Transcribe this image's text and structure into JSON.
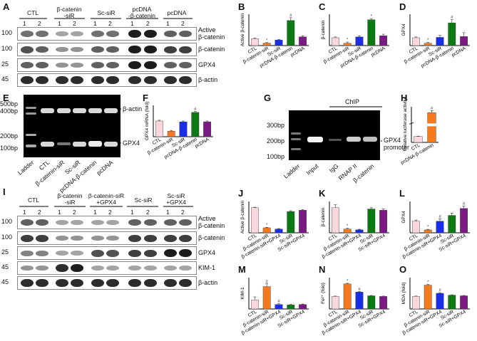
{
  "panel_letters": [
    "A",
    "B",
    "C",
    "D",
    "E",
    "F",
    "G",
    "H",
    "I",
    "J",
    "K",
    "L",
    "M",
    "N",
    "O"
  ],
  "panelA": {
    "groups": [
      "CTL",
      "β-catenin\n-siR",
      "Sc-siR",
      "pcDNA\n-β-catenin",
      "pcDNA"
    ],
    "lanes": [
      "1",
      "2",
      "1",
      "2",
      "1",
      "2",
      "1",
      "2",
      "1",
      "2"
    ],
    "rows": [
      {
        "mw": "100",
        "label": "Active\nβ-catenin"
      },
      {
        "mw": "100",
        "label": "β-catenin"
      },
      {
        "mw": "25",
        "label": "GPX4"
      },
      {
        "mw": "45",
        "label": "β-actin"
      }
    ]
  },
  "panelE": {
    "ladder_marks": [
      "500bp",
      "400bp",
      "200bp",
      "100bp"
    ],
    "band_labels": [
      "β-actin",
      "GPX4"
    ],
    "lanes": [
      "Ladder",
      "CTL",
      "β-catenin-siR",
      "Sc-siR",
      "pcDNA-β-catenin",
      "pcDNA"
    ]
  },
  "panelG": {
    "ladder_marks": [
      "300bp",
      "200bp",
      "100bp"
    ],
    "chip_label": "ChIP",
    "band_label": "GPX4\npromoter",
    "lanes": [
      "Ladder",
      "Input",
      "IgG",
      "RNAP II",
      "β-catenin"
    ]
  },
  "panelI": {
    "groups": [
      "CTL",
      "β-catenin\n-siR",
      "β-catenin-siR\n+GPX4",
      "Sc-siR",
      "Sc-siR\n+GPX4"
    ],
    "lanes": [
      "1",
      "2",
      "1",
      "2",
      "1",
      "2",
      "1",
      "2",
      "1",
      "2"
    ],
    "rows": [
      {
        "mw": "100",
        "label": "Active\nβ-catenin"
      },
      {
        "mw": "100",
        "label": "β-catenin"
      },
      {
        "mw": "25",
        "label": "GPX4"
      },
      {
        "mw": "45",
        "label": "KIM-1"
      },
      {
        "mw": "45",
        "label": "β-actin"
      }
    ]
  },
  "chart_data": [
    {
      "id": "B",
      "type": "bar",
      "ylabel": "Active β-catenin",
      "categories": [
        "CTL",
        "β-catenin-siR",
        "Sc-siR",
        "pcDNA-β-catenin",
        "pcDNA"
      ],
      "values": [
        1.0,
        0.35,
        0.8,
        3.6,
        1.25
      ],
      "errors": [
        0.1,
        0.08,
        0.08,
        0.4,
        0.15
      ],
      "marks": [
        "",
        "*",
        "",
        "#",
        ""
      ],
      "colors": [
        "#f9d7dc",
        "#f47a20",
        "#1a2ee6",
        "#0b7a12",
        "#7b1a84"
      ],
      "ylim": [
        0,
        4.5
      ]
    },
    {
      "id": "C",
      "type": "bar",
      "ylabel": "β-catenin",
      "categories": [
        "CTL",
        "β-catenin-siR",
        "Sc-siR",
        "pcDNA-β-catenin",
        "pcDNA"
      ],
      "values": [
        1.0,
        0.3,
        1.1,
        3.3,
        1.25
      ],
      "errors": [
        0.1,
        0.15,
        0.15,
        0.15,
        0.2
      ],
      "marks": [
        "",
        "*",
        "",
        "*",
        ""
      ],
      "colors": [
        "#f9d7dc",
        "#f47a20",
        "#1a2ee6",
        "#0b7a12",
        "#7b1a84"
      ],
      "ylim": [
        0,
        4.0
      ]
    },
    {
      "id": "D",
      "type": "bar",
      "ylabel": "GPX4",
      "categories": [
        "CTL",
        "β-catenin-siR",
        "Sc-siR",
        "pcDNA-β-catenin",
        "pcDNA"
      ],
      "values": [
        1.0,
        0.3,
        1.05,
        2.9,
        1.15
      ],
      "errors": [
        0.1,
        0.1,
        0.25,
        0.4,
        0.5
      ],
      "marks": [
        "",
        "*",
        "",
        "#",
        ""
      ],
      "colors": [
        "#f9d7dc",
        "#f47a20",
        "#1a2ee6",
        "#0b7a12",
        "#7b1a84"
      ],
      "ylim": [
        0,
        4.0
      ]
    },
    {
      "id": "F",
      "type": "bar",
      "ylabel": "GPX4 mRNA (fold)",
      "categories": [
        "CTL",
        "β-catenin-siR",
        "Sc-siR",
        "pcDNA-β-catenin",
        "pcDNA"
      ],
      "values": [
        1.0,
        0.35,
        0.95,
        1.55,
        0.95
      ],
      "errors": [
        0.05,
        0.05,
        0.05,
        0.06,
        0.05
      ],
      "marks": [
        "",
        "",
        "",
        "#",
        ""
      ],
      "colors": [
        "#f9d7dc",
        "#f47a20",
        "#1a2ee6",
        "#0b7a12",
        "#7b1a84"
      ],
      "ylim": [
        0,
        2.0
      ]
    },
    {
      "id": "H",
      "type": "bar",
      "ylabel": "Relative luciferase activity",
      "categories": [
        "CTL",
        "pcDNA-β-catenin"
      ],
      "values": [
        1.0,
        5.0
      ],
      "errors": [
        0.05,
        0.35
      ],
      "marks": [
        "",
        "#"
      ],
      "colors": [
        "#f9d7dc",
        "#f47a20"
      ],
      "ylim": [
        0,
        6.0
      ],
      "axis_break": true
    },
    {
      "id": "J",
      "type": "bar",
      "ylabel": "Active β-catenin",
      "categories": [
        "CTL",
        "β-catenin-siR",
        "β-catenin-siR+GPX4",
        "Sc-siR",
        "Sc-siR+GPX4"
      ],
      "values": [
        1.0,
        0.2,
        0.15,
        0.85,
        0.9
      ],
      "errors": [
        0.02,
        0.02,
        0.02,
        0.03,
        0.02
      ],
      "marks": [
        "",
        "*",
        "",
        "",
        ""
      ],
      "colors": [
        "#f9d7dc",
        "#f47a20",
        "#1a2ee6",
        "#0b7a12",
        "#7b1a84"
      ],
      "ylim": [
        0,
        1.25
      ]
    },
    {
      "id": "K",
      "type": "bar",
      "ylabel": "β-catenin",
      "categories": [
        "CTL",
        "β-catenin-siR",
        "β-catenin-siR+GPX4",
        "Sc-siR",
        "Sc-siR+GPX4"
      ],
      "values": [
        1.0,
        0.15,
        0.12,
        0.95,
        0.9
      ],
      "errors": [
        0.12,
        0.03,
        0.02,
        0.05,
        0.05
      ],
      "marks": [
        "",
        "*",
        "",
        "",
        ""
      ],
      "colors": [
        "#f9d7dc",
        "#f47a20",
        "#1a2ee6",
        "#0b7a12",
        "#7b1a84"
      ],
      "ylim": [
        0,
        1.25
      ]
    },
    {
      "id": "L",
      "type": "bar",
      "ylabel": "GPX4",
      "categories": [
        "CTL",
        "β-catenin-siR",
        "β-catenin-siR+GPX4",
        "Sc-siR",
        "Sc-siR+GPX4"
      ],
      "values": [
        1.0,
        0.25,
        1.0,
        1.5,
        2.1
      ],
      "errors": [
        0.1,
        0.05,
        0.2,
        0.2,
        0.2
      ],
      "marks": [
        "",
        "*",
        "#",
        "",
        "#"
      ],
      "colors": [
        "#f9d7dc",
        "#f47a20",
        "#1a2ee6",
        "#0b7a12",
        "#7b1a84"
      ],
      "ylim": [
        0,
        2.7
      ]
    },
    {
      "id": "M",
      "type": "bar",
      "ylabel": "KIM-1",
      "categories": [
        "CTL",
        "β-catenin-siR",
        "β-catenin-siR+GPX4",
        "Sc-siR",
        "Sc-siR+GPX4"
      ],
      "values": [
        1.0,
        2.5,
        0.5,
        0.45,
        0.5
      ],
      "errors": [
        0.35,
        0.3,
        0.08,
        0.05,
        0.05
      ],
      "marks": [
        "",
        "#",
        "#",
        "",
        ""
      ],
      "colors": [
        "#f9d7dc",
        "#f47a20",
        "#1a2ee6",
        "#0b7a12",
        "#7b1a84"
      ],
      "ylim": [
        0,
        3.5
      ]
    },
    {
      "id": "N",
      "type": "bar",
      "ylabel": "Fe²⁺ (fold)",
      "categories": [
        "CTL",
        "β-catenin-siR",
        "β-catenin-siR+GPX4",
        "Sc-siR",
        "Sc-siR+GPX4"
      ],
      "values": [
        1.0,
        2.0,
        1.35,
        1.05,
        1.0
      ],
      "errors": [
        0.03,
        0.05,
        0.04,
        0.03,
        0.03
      ],
      "marks": [
        "",
        "*",
        "#",
        "",
        ""
      ],
      "colors": [
        "#f9d7dc",
        "#f47a20",
        "#1a2ee6",
        "#0b7a12",
        "#7b1a84"
      ],
      "ylim": [
        0,
        2.5
      ]
    },
    {
      "id": "O",
      "type": "bar",
      "ylabel": "MDA (fold)",
      "categories": [
        "CTL",
        "β-catenin-siR",
        "β-catenin-siR+GPX4",
        "Sc-siR",
        "Sc-siR+GPX4"
      ],
      "values": [
        1.0,
        1.9,
        1.25,
        1.1,
        1.05
      ],
      "errors": [
        0.03,
        0.06,
        0.05,
        0.03,
        0.03
      ],
      "marks": [
        "",
        "*",
        "#",
        "",
        ""
      ],
      "colors": [
        "#f9d7dc",
        "#f47a20",
        "#1a2ee6",
        "#0b7a12",
        "#7b1a84"
      ],
      "ylim": [
        0,
        2.5
      ]
    }
  ]
}
